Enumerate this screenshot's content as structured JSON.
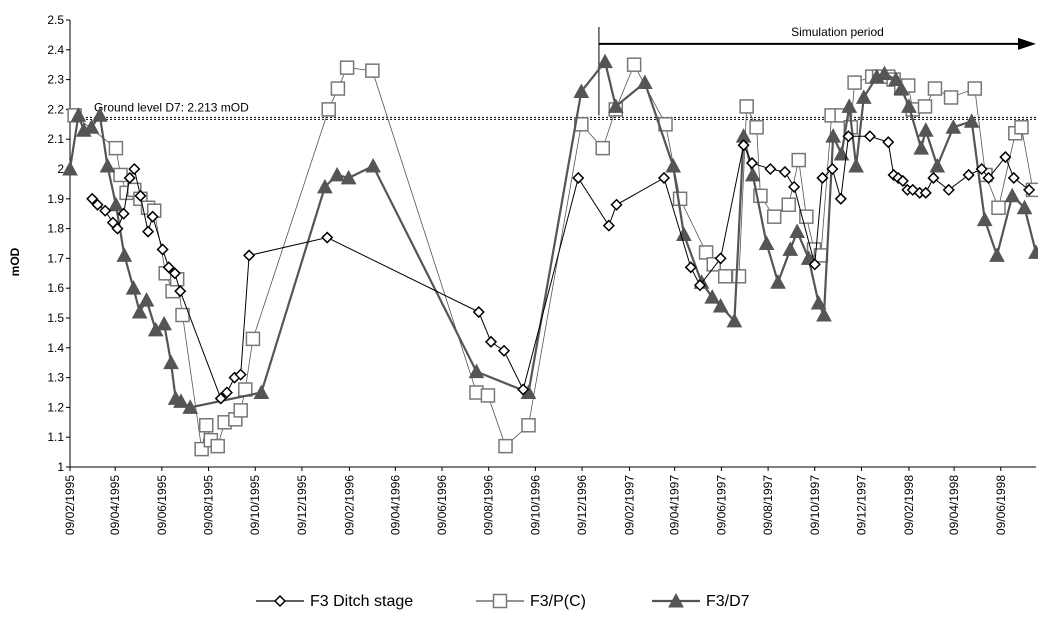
{
  "chart_data": {
    "type": "line",
    "title": "",
    "xlabel": "",
    "ylabel": "mOD",
    "xlim": [
      "1995-02-09",
      "1998-07-25"
    ],
    "ylim": [
      1,
      2.5
    ],
    "y_tick_step": 0.1,
    "y_tick_labels": [
      "1",
      "1.1",
      "1.2",
      "1.3",
      "1.4",
      "1.5",
      "1.6",
      "1.7",
      "1.8",
      "1.9",
      "2",
      "2.1",
      "2.2",
      "2.3",
      "2.4",
      "2.5"
    ],
    "x_tick_labels": [
      "09/02/1995",
      "09/04/1995",
      "09/06/1995",
      "09/08/1995",
      "09/10/1995",
      "09/12/1995",
      "09/02/1996",
      "09/04/1996",
      "09/06/1996",
      "09/08/1996",
      "09/10/1996",
      "09/12/1996",
      "09/02/1997",
      "09/04/1997",
      "09/06/1997",
      "09/08/1997",
      "09/10/1997",
      "09/12/1997",
      "09/02/1998",
      "09/04/1998",
      "09/06/1998"
    ],
    "x_tick_dates": [
      "1995-02-09",
      "1995-04-09",
      "1995-06-09",
      "1995-08-09",
      "1995-10-09",
      "1995-12-09",
      "1996-02-09",
      "1996-04-09",
      "1996-06-09",
      "1996-08-09",
      "1996-10-09",
      "1996-12-09",
      "1997-02-09",
      "1997-04-09",
      "1997-06-09",
      "1997-08-09",
      "1997-10-09",
      "1997-12-09",
      "1998-02-09",
      "1998-04-09",
      "1998-06-09"
    ],
    "grid": false,
    "legend_position": "bottom",
    "annotations": {
      "ground_level": {
        "label": "Ground level D7: 2.213 mOD",
        "y": 2.17
      },
      "simulation": {
        "label": "Simulation period",
        "start": "1996-12-31",
        "end": "1998-07-25",
        "y": 2.42
      }
    },
    "series": [
      {
        "name": "F3 Ditch stage",
        "marker": "diamond",
        "color": "#000000",
        "points": [
          [
            "1995-03-10",
            1.9
          ],
          [
            "1995-03-17",
            1.88
          ],
          [
            "1995-03-27",
            1.86
          ],
          [
            "1995-04-06",
            1.82
          ],
          [
            "1995-04-12",
            1.8
          ],
          [
            "1995-04-20",
            1.85
          ],
          [
            "1995-04-28",
            1.97
          ],
          [
            "1995-05-04",
            2.0
          ],
          [
            "1995-05-12",
            1.91
          ],
          [
            "1995-05-22",
            1.79
          ],
          [
            "1995-05-28",
            1.84
          ],
          [
            "1995-06-10",
            1.73
          ],
          [
            "1995-06-18",
            1.67
          ],
          [
            "1995-06-26",
            1.65
          ],
          [
            "1995-07-03",
            1.59
          ],
          [
            "1995-08-25",
            1.23
          ],
          [
            "1995-09-02",
            1.25
          ],
          [
            "1995-09-12",
            1.3
          ],
          [
            "1995-09-20",
            1.31
          ],
          [
            "1995-10-01",
            1.71
          ],
          [
            "1996-01-11",
            1.77
          ],
          [
            "1996-07-27",
            1.52
          ],
          [
            "1996-08-12",
            1.42
          ],
          [
            "1996-08-29",
            1.39
          ],
          [
            "1996-09-23",
            1.26
          ],
          [
            "1996-12-04",
            1.97
          ],
          [
            "1997-01-13",
            1.81
          ],
          [
            "1997-01-23",
            1.88
          ],
          [
            "1997-03-26",
            1.97
          ],
          [
            "1997-04-30",
            1.67
          ],
          [
            "1997-05-12",
            1.61
          ],
          [
            "1997-06-08",
            1.7
          ],
          [
            "1997-07-08",
            2.08
          ],
          [
            "1997-07-19",
            2.02
          ],
          [
            "1997-08-12",
            2.0
          ],
          [
            "1997-08-31",
            1.99
          ],
          [
            "1997-09-12",
            1.94
          ],
          [
            "1997-10-09",
            1.68
          ],
          [
            "1997-10-19",
            1.97
          ],
          [
            "1997-11-01",
            2.0
          ],
          [
            "1997-11-12",
            1.9
          ],
          [
            "1997-11-22",
            2.11
          ],
          [
            "1997-12-20",
            2.11
          ],
          [
            "1998-01-13",
            2.09
          ],
          [
            "1998-01-20",
            1.98
          ],
          [
            "1998-01-26",
            1.97
          ],
          [
            "1998-02-01",
            1.96
          ],
          [
            "1998-02-07",
            1.93
          ],
          [
            "1998-02-14",
            1.93
          ],
          [
            "1998-02-23",
            1.92
          ],
          [
            "1998-03-03",
            1.92
          ],
          [
            "1998-03-13",
            1.97
          ],
          [
            "1998-04-02",
            1.93
          ],
          [
            "1998-04-28",
            1.98
          ],
          [
            "1998-05-15",
            2.0
          ],
          [
            "1998-05-24",
            1.97
          ],
          [
            "1998-06-15",
            2.04
          ],
          [
            "1998-06-26",
            1.97
          ],
          [
            "1998-07-16",
            1.93
          ]
        ]
      },
      {
        "name": "F3/P(C)",
        "marker": "square",
        "color": "#000000",
        "points": [
          [
            "1995-02-15",
            2.18
          ],
          [
            "1995-04-10",
            2.07
          ],
          [
            "1995-04-16",
            1.98
          ],
          [
            "1995-04-24",
            1.92
          ],
          [
            "1995-05-04",
            1.93
          ],
          [
            "1995-05-12",
            1.9
          ],
          [
            "1995-05-22",
            1.87
          ],
          [
            "1995-05-30",
            1.86
          ],
          [
            "1995-06-14",
            1.65
          ],
          [
            "1995-06-23",
            1.59
          ],
          [
            "1995-06-29",
            1.63
          ],
          [
            "1995-07-06",
            1.51
          ],
          [
            "1995-07-31",
            1.06
          ],
          [
            "1995-08-06",
            1.14
          ],
          [
            "1995-08-12",
            1.09
          ],
          [
            "1995-08-21",
            1.07
          ],
          [
            "1995-08-30",
            1.15
          ],
          [
            "1995-09-13",
            1.16
          ],
          [
            "1995-09-20",
            1.19
          ],
          [
            "1995-09-26",
            1.26
          ],
          [
            "1995-10-06",
            1.43
          ],
          [
            "1996-01-13",
            2.2
          ],
          [
            "1996-01-25",
            2.27
          ],
          [
            "1996-02-06",
            2.34
          ],
          [
            "1996-03-10",
            2.33
          ],
          [
            "1996-07-24",
            1.25
          ],
          [
            "1996-08-08",
            1.24
          ],
          [
            "1996-08-31",
            1.07
          ],
          [
            "1996-09-30",
            1.14
          ],
          [
            "1996-12-08",
            2.15
          ],
          [
            "1997-01-05",
            2.07
          ],
          [
            "1997-01-22",
            2.2
          ],
          [
            "1997-02-15",
            2.35
          ],
          [
            "1997-03-28",
            2.15
          ],
          [
            "1997-04-16",
            1.9
          ],
          [
            "1997-05-20",
            1.72
          ],
          [
            "1997-05-30",
            1.68
          ],
          [
            "1997-06-14",
            1.64
          ],
          [
            "1997-07-02",
            1.64
          ],
          [
            "1997-07-12",
            2.21
          ],
          [
            "1997-07-25",
            2.14
          ],
          [
            "1997-07-30",
            1.91
          ],
          [
            "1997-08-17",
            1.84
          ],
          [
            "1997-09-05",
            1.88
          ],
          [
            "1997-09-18",
            2.03
          ],
          [
            "1997-09-28",
            1.84
          ],
          [
            "1997-10-08",
            1.73
          ],
          [
            "1997-10-17",
            1.71
          ],
          [
            "1997-10-31",
            2.18
          ],
          [
            "1997-11-13",
            2.18
          ],
          [
            "1997-11-25",
            2.14
          ],
          [
            "1997-11-30",
            2.29
          ],
          [
            "1997-12-23",
            2.31
          ],
          [
            "1998-01-01",
            2.31
          ],
          [
            "1998-01-13",
            2.31
          ],
          [
            "1998-01-20",
            2.3
          ],
          [
            "1998-01-30",
            2.27
          ],
          [
            "1998-02-08",
            2.28
          ],
          [
            "1998-02-14",
            2.2
          ],
          [
            "1998-03-02",
            2.21
          ],
          [
            "1998-03-15",
            2.27
          ],
          [
            "1998-04-05",
            2.24
          ],
          [
            "1998-05-06",
            2.27
          ],
          [
            "1998-05-20",
            1.98
          ],
          [
            "1998-06-06",
            1.87
          ],
          [
            "1998-06-28",
            2.12
          ],
          [
            "1998-07-06",
            2.14
          ],
          [
            "1998-07-21",
            1.93
          ]
        ]
      },
      {
        "name": "F3/D7",
        "marker": "triangle",
        "color": "#555555",
        "points": [
          [
            "1995-02-09",
            2.0
          ],
          [
            "1995-02-20",
            2.18
          ],
          [
            "1995-02-27",
            2.13
          ],
          [
            "1995-03-09",
            2.14
          ],
          [
            "1995-03-20",
            2.18
          ],
          [
            "1995-03-30",
            2.01
          ],
          [
            "1995-04-10",
            1.88
          ],
          [
            "1995-04-21",
            1.71
          ],
          [
            "1995-05-03",
            1.6
          ],
          [
            "1995-05-11",
            1.52
          ],
          [
            "1995-05-20",
            1.56
          ],
          [
            "1995-06-01",
            1.46
          ],
          [
            "1995-06-12",
            1.48
          ],
          [
            "1995-06-21",
            1.35
          ],
          [
            "1995-06-27",
            1.23
          ],
          [
            "1995-07-04",
            1.22
          ],
          [
            "1995-07-16",
            1.2
          ],
          [
            "1995-10-17",
            1.25
          ],
          [
            "1996-01-08",
            1.94
          ],
          [
            "1996-01-24",
            1.98
          ],
          [
            "1996-02-08",
            1.97
          ],
          [
            "1996-03-11",
            2.01
          ],
          [
            "1996-07-24",
            1.32
          ],
          [
            "1996-09-30",
            1.25
          ],
          [
            "1996-12-08",
            2.26
          ],
          [
            "1997-01-08",
            2.36
          ],
          [
            "1997-01-22",
            2.21
          ],
          [
            "1997-03-01",
            2.29
          ],
          [
            "1997-04-07",
            2.01
          ],
          [
            "1997-04-21",
            1.78
          ],
          [
            "1997-05-14",
            1.62
          ],
          [
            "1997-05-28",
            1.57
          ],
          [
            "1997-06-08",
            1.54
          ],
          [
            "1997-06-26",
            1.49
          ],
          [
            "1997-07-08",
            2.11
          ],
          [
            "1997-07-20",
            1.98
          ],
          [
            "1997-08-07",
            1.75
          ],
          [
            "1997-08-22",
            1.62
          ],
          [
            "1997-09-07",
            1.73
          ],
          [
            "1997-09-16",
            1.79
          ],
          [
            "1997-10-01",
            1.7
          ],
          [
            "1997-10-14",
            1.55
          ],
          [
            "1997-10-21",
            1.51
          ],
          [
            "1997-11-02",
            2.11
          ],
          [
            "1997-11-13",
            2.05
          ],
          [
            "1997-11-23",
            2.21
          ],
          [
            "1997-12-02",
            2.01
          ],
          [
            "1997-12-12",
            2.24
          ],
          [
            "1997-12-29",
            2.31
          ],
          [
            "1998-01-08",
            2.32
          ],
          [
            "1998-01-23",
            2.3
          ],
          [
            "1998-01-30",
            2.27
          ],
          [
            "1998-02-09",
            2.21
          ],
          [
            "1998-02-25",
            2.07
          ],
          [
            "1998-03-03",
            2.13
          ],
          [
            "1998-03-18",
            2.01
          ],
          [
            "1998-04-08",
            2.14
          ],
          [
            "1998-05-02",
            2.16
          ],
          [
            "1998-05-19",
            1.83
          ],
          [
            "1998-06-04",
            1.71
          ],
          [
            "1998-06-24",
            1.91
          ],
          [
            "1998-07-10",
            1.87
          ],
          [
            "1998-07-25",
            1.72
          ]
        ]
      }
    ]
  }
}
